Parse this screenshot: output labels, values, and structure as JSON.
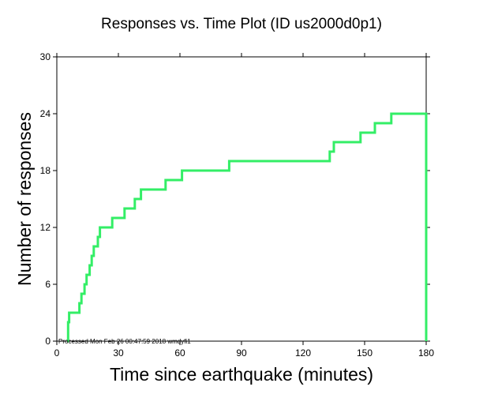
{
  "chart_data": {
    "type": "line",
    "title": "Responses vs. Time Plot (ID us2000d0p1)",
    "xlabel": "Time since earthquake (minutes)",
    "ylabel": "Number of responses",
    "xlim": [
      0,
      180
    ],
    "ylim": [
      0,
      30
    ],
    "xticks": [
      0,
      30,
      60,
      90,
      120,
      150,
      180
    ],
    "yticks": [
      0,
      6,
      12,
      18,
      24,
      30
    ],
    "annotation": "Processed Mon Feb 26 00:47:59 2018 wmdyfi1",
    "series": [
      {
        "name": "responses",
        "color": "#33ee66",
        "step": true,
        "x": [
          5,
          5.5,
          6,
          11,
          12,
          13.5,
          14.5,
          16,
          17,
          18,
          20,
          21,
          27,
          33,
          38,
          41,
          53,
          61,
          84,
          133,
          135,
          148,
          155,
          163,
          180,
          180
        ],
        "y": [
          0,
          2,
          3,
          4,
          5,
          6,
          7,
          8,
          9,
          10,
          11,
          12,
          13,
          14,
          15,
          16,
          17,
          18,
          19,
          20,
          21,
          22,
          23,
          24,
          24,
          0
        ]
      }
    ]
  }
}
